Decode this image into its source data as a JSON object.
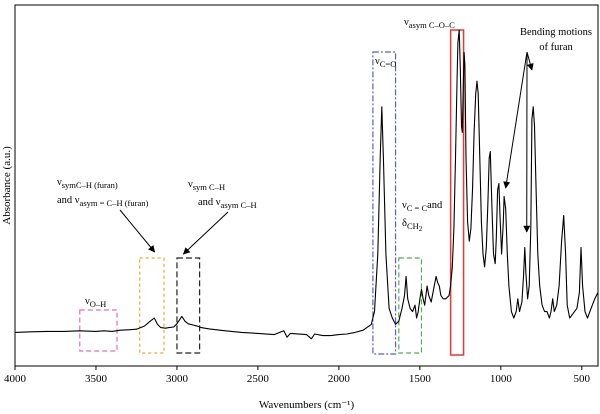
{
  "chart_data": {
    "type": "line",
    "title": "",
    "xlabel": "Wavenumbers (cm⁻¹)",
    "ylabel": "Absorbance (a.u.)",
    "xlim": [
      4000,
      400
    ],
    "x_reversed": true,
    "ylim": [
      0,
      1
    ],
    "x_ticks": [
      4000,
      3500,
      3000,
      2500,
      2000,
      1500,
      1000,
      500
    ],
    "y_ticks": [],
    "grid": false,
    "legend": "none",
    "line_color": "#000000",
    "series": [
      {
        "values": [
          [
            4000,
            0.055
          ],
          [
            3900,
            0.057
          ],
          [
            3800,
            0.058
          ],
          [
            3700,
            0.058
          ],
          [
            3600,
            0.06
          ],
          [
            3500,
            0.058
          ],
          [
            3450,
            0.06
          ],
          [
            3400,
            0.058
          ],
          [
            3350,
            0.062
          ],
          [
            3300,
            0.063
          ],
          [
            3250,
            0.065
          ],
          [
            3200,
            0.075
          ],
          [
            3170,
            0.088
          ],
          [
            3140,
            0.1
          ],
          [
            3120,
            0.08
          ],
          [
            3100,
            0.07
          ],
          [
            3070,
            0.068
          ],
          [
            3050,
            0.07
          ],
          [
            3020,
            0.072
          ],
          [
            3000,
            0.082
          ],
          [
            2970,
            0.105
          ],
          [
            2950,
            0.09
          ],
          [
            2930,
            0.082
          ],
          [
            2900,
            0.078
          ],
          [
            2870,
            0.074
          ],
          [
            2850,
            0.07
          ],
          [
            2800,
            0.066
          ],
          [
            2700,
            0.06
          ],
          [
            2600,
            0.055
          ],
          [
            2500,
            0.052
          ],
          [
            2400,
            0.048
          ],
          [
            2340,
            0.06
          ],
          [
            2320,
            0.04
          ],
          [
            2300,
            0.052
          ],
          [
            2200,
            0.048
          ],
          [
            2170,
            0.035
          ],
          [
            2150,
            0.05
          ],
          [
            2100,
            0.045
          ],
          [
            2050,
            0.045
          ],
          [
            2000,
            0.048
          ],
          [
            1950,
            0.05
          ],
          [
            1900,
            0.055
          ],
          [
            1850,
            0.062
          ],
          [
            1800,
            0.08
          ],
          [
            1780,
            0.12
          ],
          [
            1760,
            0.3
          ],
          [
            1745,
            0.6
          ],
          [
            1735,
            0.76
          ],
          [
            1725,
            0.6
          ],
          [
            1710,
            0.3
          ],
          [
            1690,
            0.13
          ],
          [
            1670,
            0.1
          ],
          [
            1650,
            0.08
          ],
          [
            1630,
            0.09
          ],
          [
            1610,
            0.13
          ],
          [
            1595,
            0.17
          ],
          [
            1585,
            0.23
          ],
          [
            1575,
            0.16
          ],
          [
            1560,
            0.13
          ],
          [
            1545,
            0.12
          ],
          [
            1530,
            0.14
          ],
          [
            1520,
            0.1
          ],
          [
            1510,
            0.12
          ],
          [
            1500,
            0.16
          ],
          [
            1490,
            0.19
          ],
          [
            1480,
            0.16
          ],
          [
            1470,
            0.14
          ],
          [
            1455,
            0.2
          ],
          [
            1445,
            0.17
          ],
          [
            1430,
            0.15
          ],
          [
            1415,
            0.19
          ],
          [
            1400,
            0.23
          ],
          [
            1390,
            0.21
          ],
          [
            1380,
            0.2
          ],
          [
            1370,
            0.17
          ],
          [
            1355,
            0.16
          ],
          [
            1340,
            0.16
          ],
          [
            1320,
            0.17
          ],
          [
            1310,
            0.2
          ],
          [
            1300,
            0.26
          ],
          [
            1290,
            0.38
          ],
          [
            1280,
            0.6
          ],
          [
            1270,
            0.85
          ],
          [
            1265,
            0.96
          ],
          [
            1257,
            1.0
          ],
          [
            1250,
            0.88
          ],
          [
            1243,
            0.7
          ],
          [
            1238,
            0.68
          ],
          [
            1233,
            0.8
          ],
          [
            1227,
            0.93
          ],
          [
            1222,
            0.89
          ],
          [
            1215,
            0.6
          ],
          [
            1205,
            0.4
          ],
          [
            1195,
            0.34
          ],
          [
            1185,
            0.38
          ],
          [
            1175,
            0.5
          ],
          [
            1165,
            0.68
          ],
          [
            1155,
            0.8
          ],
          [
            1147,
            0.84
          ],
          [
            1140,
            0.8
          ],
          [
            1130,
            0.6
          ],
          [
            1120,
            0.4
          ],
          [
            1110,
            0.3
          ],
          [
            1100,
            0.26
          ],
          [
            1090,
            0.32
          ],
          [
            1080,
            0.46
          ],
          [
            1072,
            0.6
          ],
          [
            1065,
            0.62
          ],
          [
            1055,
            0.45
          ],
          [
            1045,
            0.3
          ],
          [
            1035,
            0.27
          ],
          [
            1028,
            0.35
          ],
          [
            1020,
            0.5
          ],
          [
            1012,
            0.52
          ],
          [
            1005,
            0.42
          ],
          [
            995,
            0.3
          ],
          [
            985,
            0.4
          ],
          [
            980,
            0.48
          ],
          [
            970,
            0.44
          ],
          [
            960,
            0.3
          ],
          [
            950,
            0.2
          ],
          [
            935,
            0.12
          ],
          [
            920,
            0.1
          ],
          [
            905,
            0.12
          ],
          [
            895,
            0.16
          ],
          [
            885,
            0.12
          ],
          [
            870,
            0.15
          ],
          [
            860,
            0.23
          ],
          [
            852,
            0.32
          ],
          [
            845,
            0.24
          ],
          [
            835,
            0.16
          ],
          [
            825,
            0.2
          ],
          [
            815,
            0.38
          ],
          [
            808,
            0.72
          ],
          [
            800,
            0.76
          ],
          [
            792,
            0.7
          ],
          [
            782,
            0.5
          ],
          [
            772,
            0.3
          ],
          [
            760,
            0.2
          ],
          [
            745,
            0.14
          ],
          [
            730,
            0.12
          ],
          [
            715,
            0.12
          ],
          [
            700,
            0.1
          ],
          [
            690,
            0.12
          ],
          [
            680,
            0.16
          ],
          [
            670,
            0.12
          ],
          [
            655,
            0.14
          ],
          [
            640,
            0.2
          ],
          [
            625,
            0.34
          ],
          [
            612,
            0.42
          ],
          [
            600,
            0.3
          ],
          [
            590,
            0.14
          ],
          [
            575,
            0.1
          ],
          [
            560,
            0.11
          ],
          [
            545,
            0.12
          ],
          [
            530,
            0.13
          ],
          [
            515,
            0.18
          ],
          [
            505,
            0.32
          ],
          [
            495,
            0.2
          ],
          [
            480,
            0.12
          ],
          [
            465,
            0.1
          ],
          [
            450,
            0.12
          ],
          [
            435,
            0.14
          ],
          [
            420,
            0.16
          ],
          [
            400,
            0.18
          ]
        ]
      }
    ],
    "annotations": [
      {
        "name": "o-h",
        "label": "ν",
        "sub": "O–H",
        "color": "#e46fb5",
        "x_range": [
          3600,
          3370
        ]
      },
      {
        "name": "ch-furan",
        "label": "ν",
        "sub": "symC–H (furan)",
        "label2_pre": "and ν",
        "label2_sub": "asym = C–H (furan)",
        "color": "#f5a623",
        "x_range": [
          3230,
          3080
        ]
      },
      {
        "name": "ch",
        "label": "ν",
        "sub": "sym C–H",
        "label2_pre": "and ν",
        "label2_sub": "asym C–H",
        "color": "#222222",
        "x_range": [
          3000,
          2860
        ]
      },
      {
        "name": "co",
        "label": "ν",
        "sub": "C=O",
        "color": "#5c5ec8",
        "x_range": [
          1790,
          1650
        ]
      },
      {
        "name": "cc",
        "label": "ν",
        "sub": "C = C",
        "label_suffix": "and",
        "label2_pre": "δ",
        "label2_sub": "CH",
        "label2_subsub": "2",
        "color": "#4caf50",
        "x_range": [
          1630,
          1490
        ]
      },
      {
        "name": "coc",
        "label": "ν",
        "sub": "asym C–O–C",
        "color": "#e53935",
        "x_range": [
          1310,
          1230
        ]
      },
      {
        "name": "bending",
        "label": "Bending motions",
        "label2": "of furan",
        "color": "#000000",
        "points": [
          970,
          808,
          840
        ]
      }
    ]
  }
}
